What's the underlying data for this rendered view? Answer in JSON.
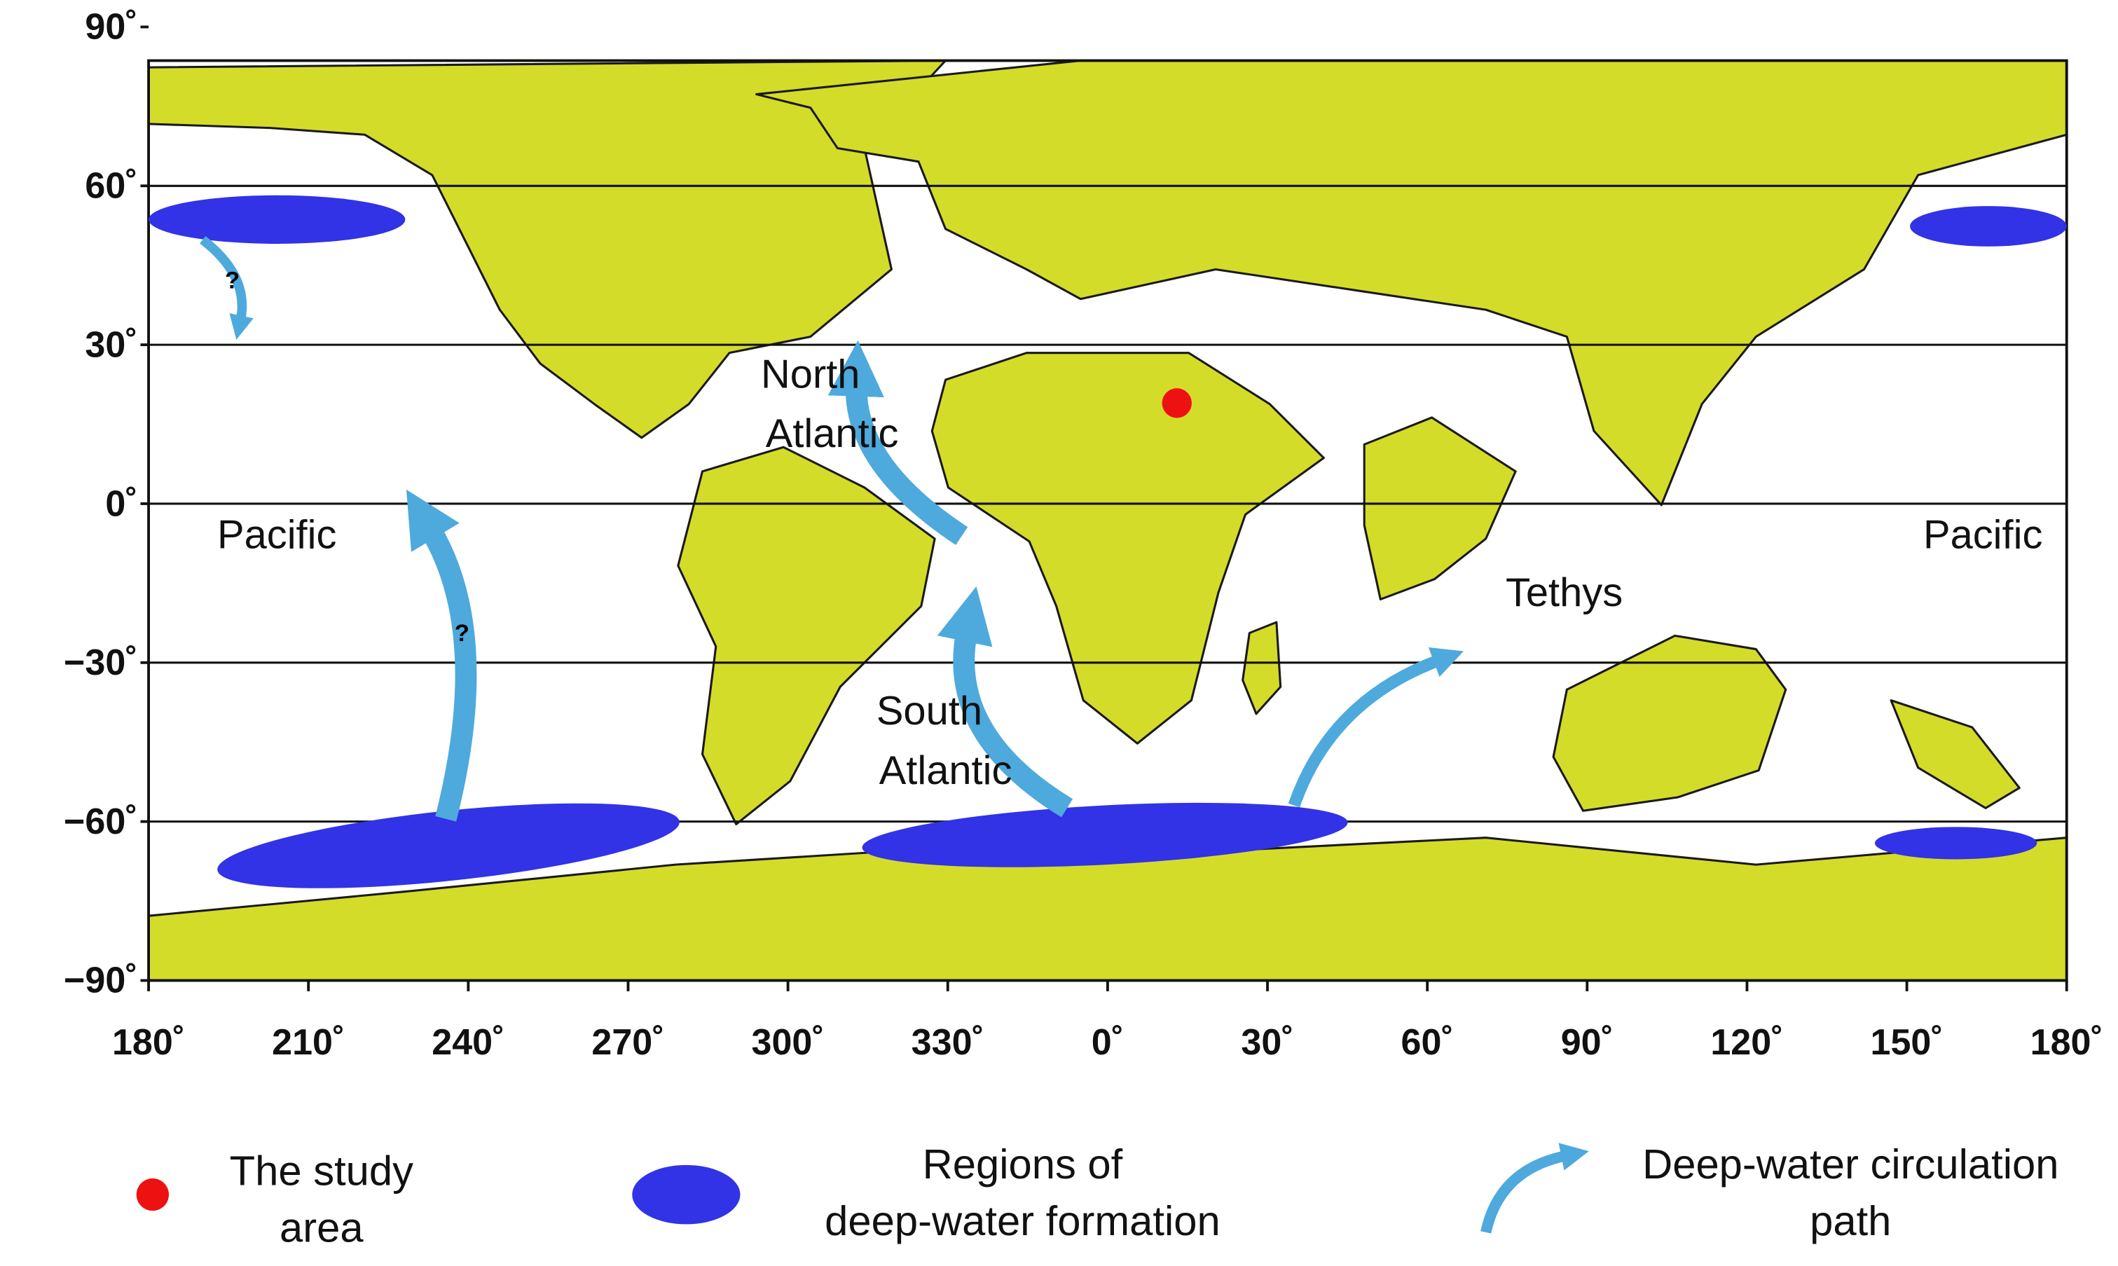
{
  "map": {
    "lat_ticks": [
      {
        "value": 90,
        "label": "90˚"
      },
      {
        "value": 60,
        "label": "60˚"
      },
      {
        "value": 30,
        "label": "30˚"
      },
      {
        "value": 0,
        "label": "0˚"
      },
      {
        "value": -30,
        "label": "−30˚"
      },
      {
        "value": -60,
        "label": "−60˚"
      },
      {
        "value": -90,
        "label": "−90˚"
      }
    ],
    "lon_ticks": [
      {
        "value": -180,
        "label": "180˚"
      },
      {
        "value": -150,
        "label": "210˚"
      },
      {
        "value": -120,
        "label": "240˚"
      },
      {
        "value": -90,
        "label": "270˚"
      },
      {
        "value": -60,
        "label": "300˚"
      },
      {
        "value": -30,
        "label": "330˚"
      },
      {
        "value": 0,
        "label": "0˚"
      },
      {
        "value": 30,
        "label": "30˚"
      },
      {
        "value": 60,
        "label": "60˚"
      },
      {
        "value": 90,
        "label": "90˚"
      },
      {
        "value": 120,
        "label": "120˚"
      },
      {
        "value": 150,
        "label": "150˚"
      },
      {
        "value": 180,
        "label": "180˚"
      }
    ],
    "labels": {
      "pacific_west": "Pacific",
      "pacific_east": "Pacific",
      "north_atlantic": [
        "North",
        "Atlantic"
      ],
      "south_atlantic": [
        "South",
        "Atlantic"
      ],
      "tethys": "Tethys",
      "question_north": "?",
      "question_pacific": "?"
    },
    "study_area": {
      "lon": 13,
      "lat": 19
    }
  },
  "legend": {
    "study_area": [
      "The study",
      "area"
    ],
    "formation": [
      "Regions of",
      "deep-water formation"
    ],
    "circulation": [
      "Deep-water circulation",
      "path"
    ]
  }
}
